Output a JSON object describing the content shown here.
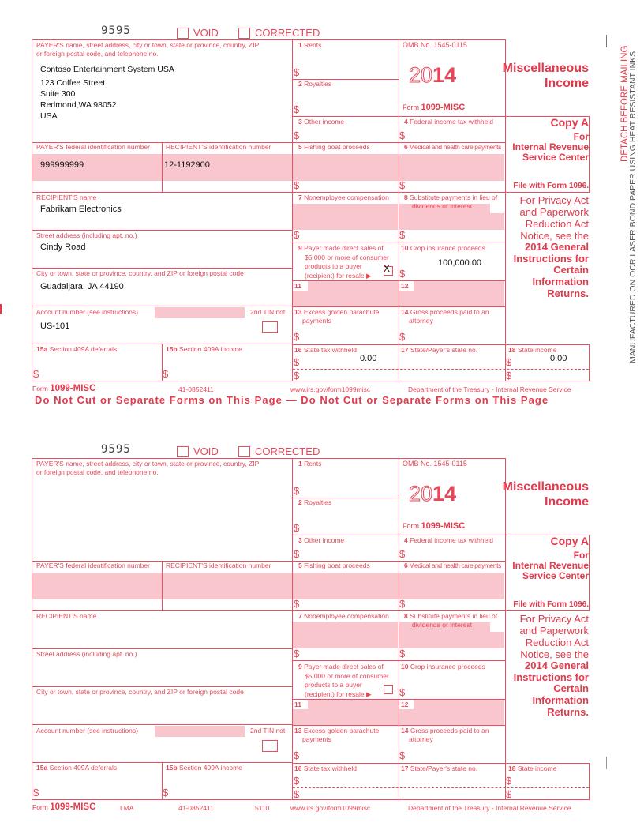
{
  "form_code": "9595",
  "labels": {
    "void": "VOID",
    "corrected": "CORRECTED",
    "payer_info": [
      "PAYER'S name, street address, city or town, state or province, country, ZIP",
      "or foreign postal code, and telephone no."
    ],
    "payer_fed_id": "PAYER'S federal identification number",
    "recipient_id": "RECIPIENT'S identification number",
    "recipient_name": "RECIPIENT'S name",
    "street": "Street address (including apt. no.)",
    "city": "City or town, state or province, country, and ZIP or foreign postal code",
    "account": "Account number (see instructions)",
    "second_tin": "2nd TIN not.",
    "box15a": {
      "num": "15a",
      "text": "Section 409A deferrals"
    },
    "box15b": {
      "num": "15b",
      "text": "Section 409A income"
    },
    "box1": {
      "num": "1",
      "text": "Rents"
    },
    "box2": {
      "num": "2",
      "text": "Royalties"
    },
    "box3": {
      "num": "3",
      "text": "Other income"
    },
    "box4": {
      "num": "4",
      "text": "Federal income tax withheld"
    },
    "box5": {
      "num": "5",
      "text": "Fishing boat proceeds"
    },
    "box6": {
      "num": "6",
      "text": "Medical and health care payments"
    },
    "box7": {
      "num": "7",
      "text": "Nonemployee compensation"
    },
    "box8": {
      "num": "8",
      "text": "Substitute payments in lieu of",
      "text2": "dividends or interest"
    },
    "box9": {
      "num": "9",
      "lines": [
        "Payer made direct sales of",
        "$5,000 or more of consumer",
        "products to a buyer",
        "(recipient) for resale ▶"
      ]
    },
    "box10": {
      "num": "10",
      "text": "Crop insurance proceeds"
    },
    "box11": {
      "num": "11"
    },
    "box12": {
      "num": "12"
    },
    "box13": {
      "num": "13",
      "text": "Excess golden parachute",
      "text2": "payments"
    },
    "box14": {
      "num": "14",
      "text": "Gross proceeds paid to an",
      "text2": "attorney"
    },
    "box16": {
      "num": "16",
      "text": "State tax withheld"
    },
    "box17": {
      "num": "17",
      "text": "State/Payer's state no."
    },
    "box18": {
      "num": "18",
      "text": "State income"
    },
    "dollar": "$",
    "omb": "OMB No. 1545-0115",
    "year_outline": "20",
    "year_bold": "14",
    "form_prefix": "Form",
    "form_name": "1099-MISC",
    "title": [
      "Miscellaneous",
      "Income"
    ],
    "copy": "Copy A",
    "for": "For",
    "irs": [
      "Internal Revenue",
      "Service Center"
    ],
    "file_with": "File with Form 1096.",
    "privacy": [
      "For Privacy Act",
      "and Paperwork",
      "Reduction Act",
      "Notice, see the"
    ],
    "instructions": [
      "2014 General",
      "Instructions for",
      "Certain",
      "Information",
      "Returns."
    ]
  },
  "copies": [
    {
      "payer_lines": [
        "Contoso Entertainment System USA",
        "123 Coffee Street",
        "Suite 300",
        "Redmond,WA 98052",
        "USA"
      ],
      "payer_fed_id": "999999999",
      "recipient_id": "12-1192900",
      "recipient_name": "Fabrikam Electronics",
      "street": "Cindy Road",
      "city": "Guadaljara, JA 44190",
      "account": "US-101",
      "box9_mark": "X",
      "box10": "100,000.00",
      "box16": "0.00",
      "box18": "0.00",
      "footer": {
        "lma": "",
        "code": "41-0852411",
        "cat": "",
        "url": "www.irs.gov/form1099misc",
        "dept": "Department of the Treasury - Internal Revenue Service"
      },
      "warning": "Do Not Cut or Separate Forms on This Page — Do Not Cut or Separate Forms on This Page"
    },
    {
      "payer_lines": [
        "",
        "",
        "",
        "",
        ""
      ],
      "payer_fed_id": "",
      "recipient_id": "",
      "recipient_name": "",
      "street": "",
      "city": "",
      "account": "",
      "box9_mark": "",
      "box10": "",
      "box16": "",
      "box18": "",
      "footer": {
        "lma": "LMA",
        "code": "41-0852411",
        "cat": "5110",
        "url": "www.irs.gov/form1099misc",
        "dept": "Department of the Treasury - Internal Revenue Service"
      },
      "warning": ""
    }
  ],
  "side_text": {
    "detach": "DETACH BEFORE MAILING",
    "manufactured": "MANUFACTURED ON OCR LASER BOND PAPER USING HEAT RESISTANT INKS"
  },
  "colors": {
    "form_red": "#e23a4c",
    "shade": "#f8c6cc",
    "fill_text": "#111111"
  }
}
